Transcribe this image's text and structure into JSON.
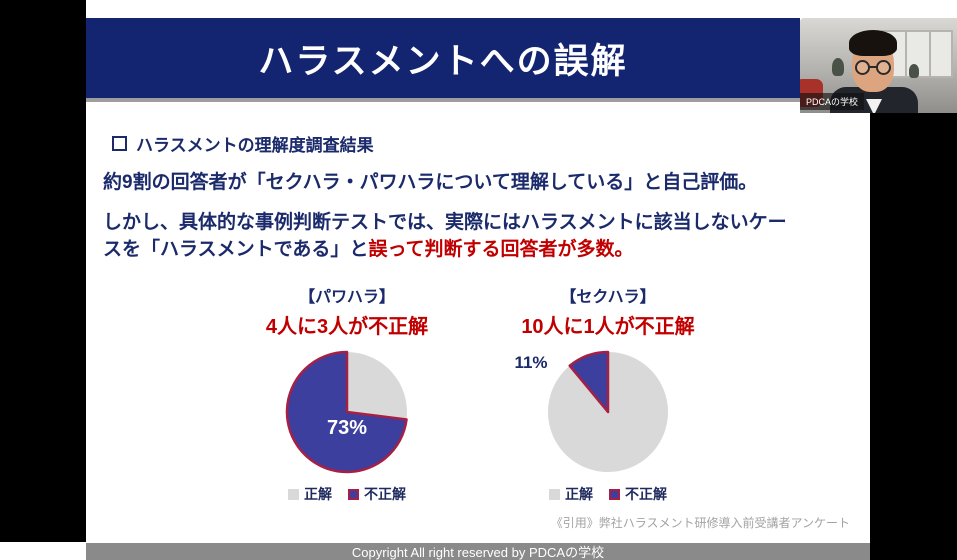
{
  "header": {
    "title": "ハラスメントへの誤解"
  },
  "webcam": {
    "label": "PDCAの学校"
  },
  "slide": {
    "section_heading": "ハラスメントの理解度調査結果",
    "paragraph1": "約9割の回答者が「セクハラ・パワハラについて理解している」と自己評価。",
    "paragraph2": {
      "line1": "しかし、具体的な事例判断テストでは、実際にはハラスメントに該当しないケー",
      "line2_navy": "スを「ハラスメントである」と",
      "line2_red": "誤って判断する回答者が多数。"
    },
    "citation": "《引用》弊社ハラスメント研修導入前受講者アンケート"
  },
  "footer": {
    "text": "Copyright All right reserved by PDCAの学校"
  },
  "colors": {
    "title_bar_navy": "#132570",
    "text_navy": "#1b2a6b",
    "accent_red": "#c00000",
    "pie_blue": "#3c3f9d",
    "pie_gray": "#d9d9d9",
    "pie_stroke": "#a62045",
    "footer_gray": "#8a8a8a"
  },
  "chart_data": [
    {
      "type": "pie",
      "title": "【パワハラ】",
      "subtitle": "4人に3人が不正解",
      "labels": [
        "正解",
        "不正解"
      ],
      "values": [
        27,
        73
      ],
      "colors": [
        "#d9d9d9",
        "#3c3f9d"
      ],
      "highlight_slice": 1,
      "data_label": "73%",
      "data_label_position": "inside",
      "legend_position": "bottom",
      "start_angle_deg": 0,
      "direction": "clockwise"
    },
    {
      "type": "pie",
      "title": "【セクハラ】",
      "subtitle": "10人に1人が不正解",
      "labels": [
        "正解",
        "不正解"
      ],
      "values": [
        89,
        11
      ],
      "colors": [
        "#d9d9d9",
        "#3c3f9d"
      ],
      "highlight_slice": 1,
      "data_label": "11%",
      "data_label_position": "outside-top-left",
      "legend_position": "bottom",
      "start_angle_deg": 0,
      "direction": "clockwise"
    }
  ]
}
